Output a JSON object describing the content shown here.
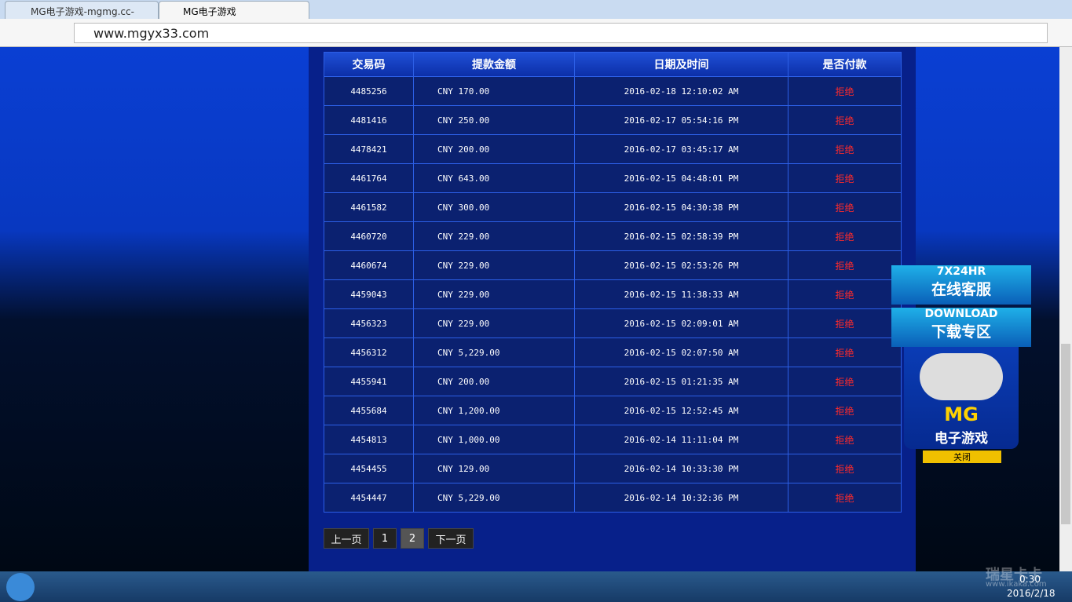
{
  "browser": {
    "tabs": [
      "MG电子游戏-mgmg.cc-",
      "MG电子游戏"
    ],
    "url": "www.mgyx33.com"
  },
  "table": {
    "headers": [
      "交易码",
      "提款金额",
      "日期及时间",
      "是否付款"
    ],
    "rows": [
      [
        "4485256",
        "CNY 170.00",
        "2016-02-18 12:10:02 AM",
        "拒绝"
      ],
      [
        "4481416",
        "CNY 250.00",
        "2016-02-17 05:54:16 PM",
        "拒绝"
      ],
      [
        "4478421",
        "CNY 200.00",
        "2016-02-17 03:45:17 AM",
        "拒绝"
      ],
      [
        "4461764",
        "CNY 643.00",
        "2016-02-15 04:48:01 PM",
        "拒绝"
      ],
      [
        "4461582",
        "CNY 300.00",
        "2016-02-15 04:30:38 PM",
        "拒绝"
      ],
      [
        "4460720",
        "CNY 229.00",
        "2016-02-15 02:58:39 PM",
        "拒绝"
      ],
      [
        "4460674",
        "CNY 229.00",
        "2016-02-15 02:53:26 PM",
        "拒绝"
      ],
      [
        "4459043",
        "CNY 229.00",
        "2016-02-15 11:38:33 AM",
        "拒绝"
      ],
      [
        "4456323",
        "CNY 229.00",
        "2016-02-15 02:09:01 AM",
        "拒绝"
      ],
      [
        "4456312",
        "CNY 5,229.00",
        "2016-02-15 02:07:50 AM",
        "拒绝"
      ],
      [
        "4455941",
        "CNY 200.00",
        "2016-02-15 01:21:35 AM",
        "拒绝"
      ],
      [
        "4455684",
        "CNY 1,200.00",
        "2016-02-15 12:52:45 AM",
        "拒绝"
      ],
      [
        "4454813",
        "CNY 1,000.00",
        "2016-02-14 11:11:04 PM",
        "拒绝"
      ],
      [
        "4454455",
        "CNY 129.00",
        "2016-02-14 10:33:30 PM",
        "拒绝"
      ],
      [
        "4454447",
        "CNY 5,229.00",
        "2016-02-14 10:32:36 PM",
        "拒绝"
      ]
    ]
  },
  "pagination": [
    "上一页",
    "1",
    "2",
    "下一页"
  ],
  "side_ad": {
    "line1": "7X24HR",
    "line2": "在线客服",
    "line3": "DOWNLOAD",
    "line4": "下载专区",
    "logo": "MG",
    "name": "电子游戏",
    "close": "关闭"
  },
  "taskbar": {
    "time": "0:30",
    "date": "2016/2/18",
    "watermark": "瑞星卡卡",
    "watermark_url": "www.ikaka.com"
  }
}
